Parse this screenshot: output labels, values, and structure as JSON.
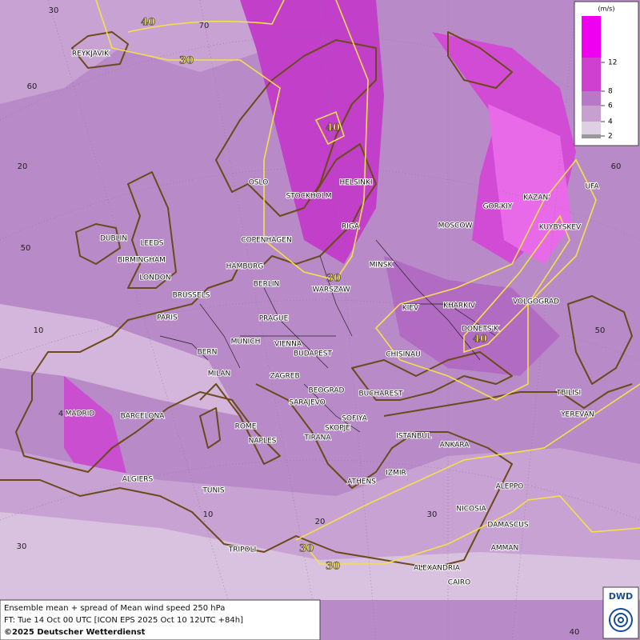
{
  "map": {
    "legend": {
      "unit": "(m/s)",
      "ticks": [
        "2",
        "4",
        "6",
        "8",
        "12"
      ]
    },
    "cities": [
      "REYKJAVIK",
      "OSLO",
      "STOCKHOLM",
      "HELSINKI",
      "RIGA",
      "DUBLIN",
      "LEEDS",
      "BIRMINGHAM",
      "LONDON",
      "COPENHAGEN",
      "HAMBURG",
      "BERLIN",
      "WARSZAW",
      "MINSK",
      "MOSCOW",
      "GOR'KIY",
      "KAZAN'",
      "UFA",
      "KUYBYSKEV",
      "BRUSSELS",
      "PARIS",
      "PRAGUE",
      "KIEV",
      "KHARKIV",
      "VOLGOGRAD",
      "DONETS'K",
      "MUNICH",
      "VIENNA",
      "BUDAPEST",
      "BERN",
      "MILAN",
      "ZAGREB",
      "CHISINAU",
      "BEOGRAD",
      "BUCHAREST",
      "TBILISI",
      "YEREVAN",
      "MADRID",
      "BARCELONA",
      "SARAJEVO",
      "SOFIYA",
      "SKOPJE",
      "ROME",
      "NAPLES",
      "TIRANA",
      "ISTANBUL",
      "ANKARA",
      "ALGIERS",
      "TUNIS",
      "ATHENS",
      "IZMIR",
      "ALEPPO",
      "NICOSIA",
      "DAMASCUS",
      "TRIPOLI",
      "AMMAN",
      "ALEXANDRIA",
      "CAIRO"
    ],
    "contour_labels": [
      "40",
      "30",
      "40",
      "30",
      "40",
      "30",
      "30"
    ],
    "graticule_labels": [
      "30",
      "70",
      "60",
      "20",
      "50",
      "10",
      "4",
      "30",
      "10",
      "20",
      "30",
      "40",
      "60",
      "50"
    ],
    "footer": {
      "line1": "Ensemble mean + spread of Mean wind speed 250 hPa",
      "line2": "FT: Tue 14 Oct 00 UTC [ICON EPS 2025 Oct 10 12UTC +84h]",
      "line3": "©2025 Deutscher Wetterdienst",
      "logo": "DWD"
    }
  }
}
